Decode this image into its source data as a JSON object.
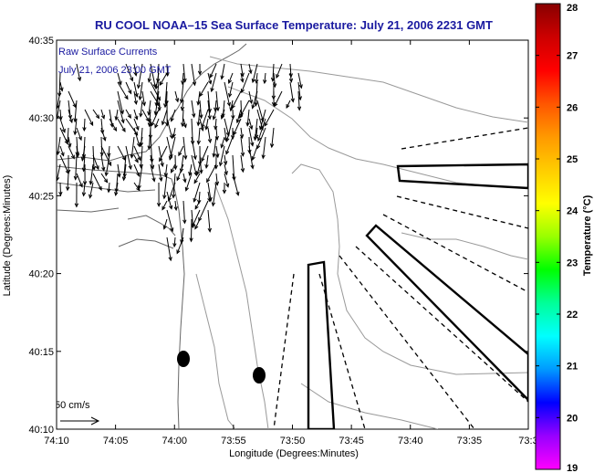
{
  "title": "RU COOL  NOAA–15  Sea Surface Temperature:  July 21, 2006 2231 GMT",
  "annotations": {
    "line1": "Raw Surface Currents",
    "line2": "July 21, 2006 23:00 GMT"
  },
  "scale_label": "50 cm/s",
  "x_axis": {
    "label": "Longitude (Degrees:Minutes)",
    "ticks": [
      "74:10",
      "74:05",
      "74:00",
      "73:55",
      "73:50",
      "73:45",
      "73:40",
      "73:35",
      "73:3"
    ]
  },
  "y_axis": {
    "label": "Latitude (Degrees:Minutes)",
    "ticks": [
      "40:35",
      "40:30",
      "40:25",
      "40:20",
      "40:15",
      "40:10"
    ]
  },
  "colorbar": {
    "label": "Temperature (°C)",
    "ticks": [
      "28",
      "27",
      "26",
      "25",
      "24",
      "23",
      "22",
      "21",
      "20",
      "19"
    ],
    "colors": [
      "#ff00ff",
      "#9900ff",
      "#0000ff",
      "#0099ff",
      "#00ffff",
      "#00ff99",
      "#00ff00",
      "#99ff00",
      "#ffff00",
      "#ffcc00",
      "#ff9900",
      "#ff5500",
      "#ff0000",
      "#cc0000",
      "#880000"
    ]
  }
}
